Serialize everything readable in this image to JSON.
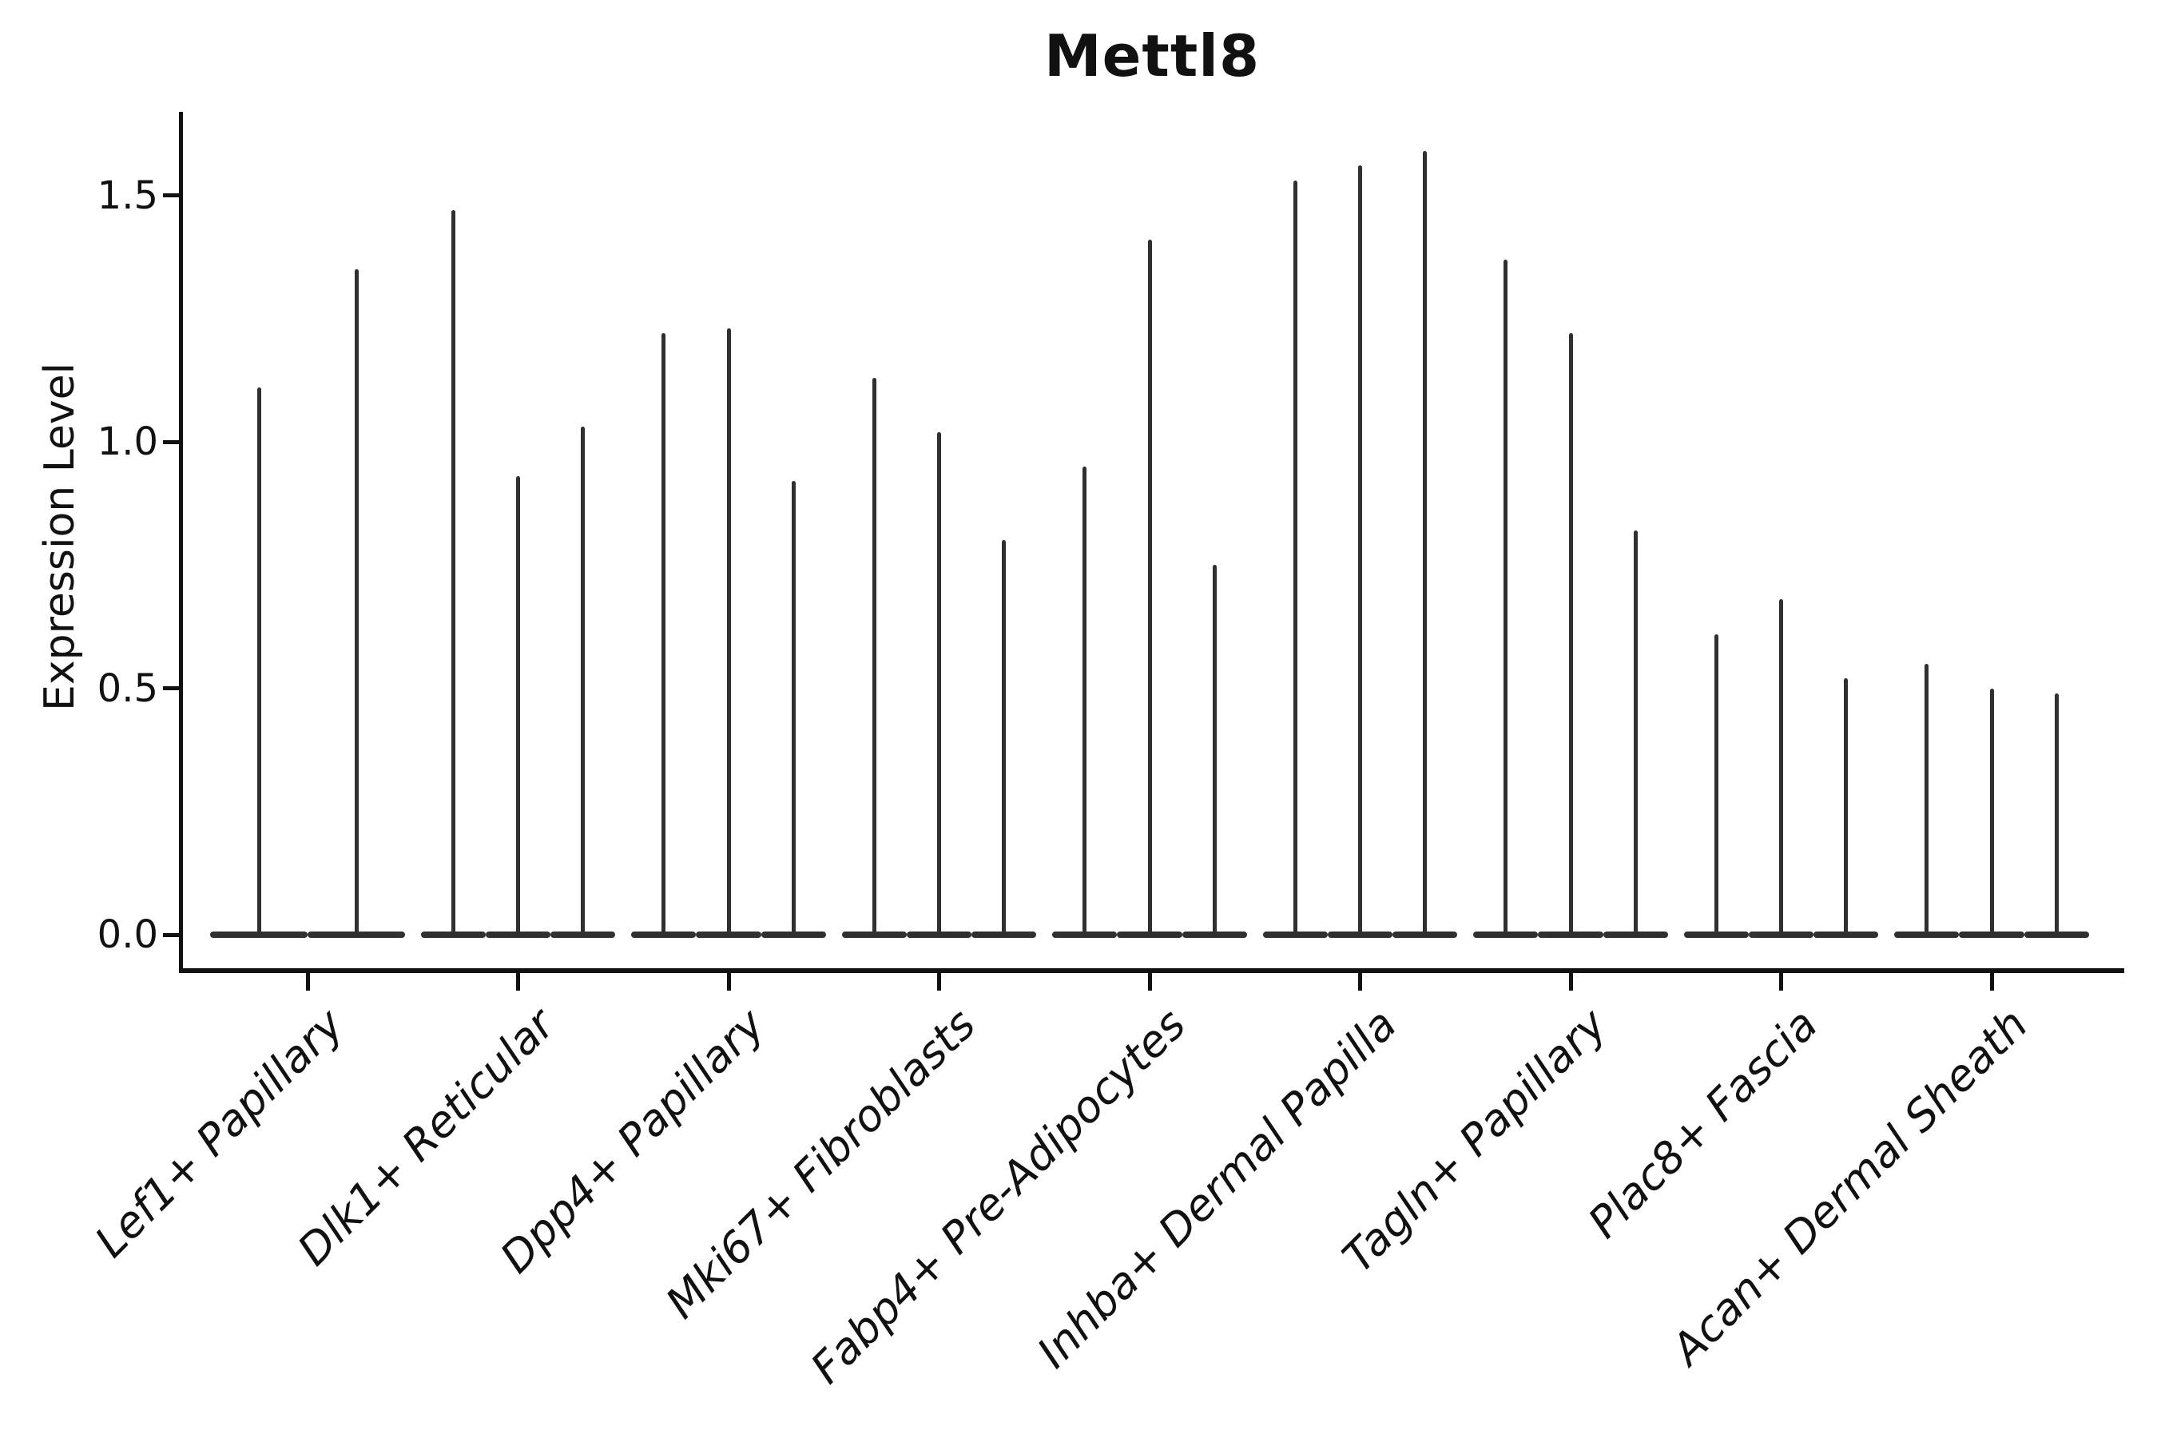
{
  "title": "Mettl8",
  "y_axis": {
    "label": "Expression Level",
    "tick_labels": [
      "0.0",
      "0.5",
      "1.0",
      "1.5"
    ]
  },
  "x_axis": {
    "categories": [
      "Lef1+ Papillary",
      "Dlk1+ Reticular",
      "Dpp4+ Papillary",
      "Mki67+ Fibroblasts",
      "Fabp4+ Pre-Adipocytes",
      "Inhba+ Dermal Papilla",
      "Tagln+ Papillary",
      "Plac8+ Fascia",
      "Acan+ Dermal Sheath"
    ]
  },
  "colors": {
    "violin": "#303030",
    "axis": "#111111",
    "background": "#ffffff"
  },
  "chart_data": {
    "type": "violin",
    "title": "Mettl8",
    "xlabel": "",
    "ylabel": "Expression Level",
    "ylim": [
      -0.05,
      1.68
    ],
    "yticks": [
      0.0,
      0.5,
      1.0,
      1.5
    ],
    "ytick_labels": [
      "0.0",
      "0.5",
      "1.0",
      "1.5"
    ],
    "grid": false,
    "legend": "none",
    "x_tick_label_rotation_deg": 45,
    "violin_baseline": 0.0,
    "violin_shape": "mass-at-zero-with-thin-spike-to-max",
    "categories": [
      "Lef1+ Papillary",
      "Dlk1+ Reticular",
      "Dpp4+ Papillary",
      "Mki67+ Fibroblasts",
      "Fabp4+ Pre-Adipocytes",
      "Inhba+ Dermal Papilla",
      "Tagln+ Papillary",
      "Plac8+ Fascia",
      "Acan+ Dermal Sheath"
    ],
    "series": [
      {
        "category": "Lef1+ Papillary",
        "violin_max": [
          1.11,
          1.35
        ]
      },
      {
        "category": "Dlk1+ Reticular",
        "violin_max": [
          1.47,
          0.93,
          1.03
        ]
      },
      {
        "category": "Dpp4+ Papillary",
        "violin_max": [
          1.22,
          1.23,
          0.92
        ]
      },
      {
        "category": "Mki67+ Fibroblasts",
        "violin_max": [
          1.13,
          1.02,
          0.8
        ]
      },
      {
        "category": "Fabp4+ Pre-Adipocytes",
        "violin_max": [
          0.95,
          1.41,
          0.75
        ]
      },
      {
        "category": "Inhba+ Dermal Papilla",
        "violin_max": [
          1.53,
          1.56,
          1.59
        ]
      },
      {
        "category": "Tagln+ Papillary",
        "violin_max": [
          1.37,
          1.22,
          0.82
        ]
      },
      {
        "category": "Plac8+ Fascia",
        "violin_max": [
          0.61,
          0.68,
          0.52
        ]
      },
      {
        "category": "Acan+ Dermal Sheath",
        "violin_max": [
          0.55,
          0.5,
          0.49
        ]
      }
    ]
  }
}
